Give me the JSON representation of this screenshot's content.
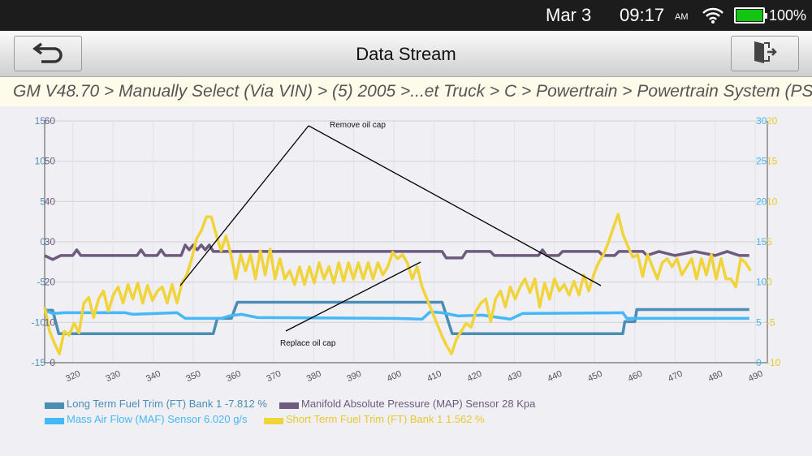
{
  "status_bar": {
    "date": "Mar 3",
    "time": "09:17",
    "ampm": "AM",
    "battery": "100%",
    "wifi_icon": "wifi-icon",
    "battery_icon": "battery-icon"
  },
  "header": {
    "title": "Data Stream",
    "back_icon": "back-arrow-icon",
    "exit_icon": "exit-door-icon"
  },
  "breadcrumb": "GM V48.70 > Manually Select (Via VIN) > (5) 2005 >...et Truck > C > Powertrain > Powertrain System (PS)",
  "chart_data": {
    "type": "line",
    "x_ticks": [
      320,
      330,
      340,
      350,
      360,
      370,
      380,
      390,
      400,
      410,
      420,
      430,
      440,
      450,
      460,
      470,
      480,
      490
    ],
    "xlim": [
      313,
      493
    ],
    "axes": {
      "left_ltft": {
        "ticks": [
          "15",
          "10",
          "5",
          "0",
          "-5",
          "-10",
          "-15"
        ],
        "ylim": [
          -15,
          15
        ],
        "color": "#4f8fb5"
      },
      "left_map": {
        "ticks": [
          "60",
          "50",
          "40",
          "30",
          "20",
          "10",
          "0"
        ],
        "ylim": [
          0,
          60
        ],
        "color": "#6e5a7e"
      },
      "right_maf": {
        "ticks": [
          "30",
          "25",
          "20",
          "15",
          "10",
          "5",
          "0"
        ],
        "ylim": [
          0,
          30
        ],
        "color": "#45b8f5"
      },
      "right_stft": {
        "ticks": [
          "20",
          "15",
          "10",
          "5",
          "0",
          "-5",
          "-10"
        ],
        "ylim": [
          -10,
          20
        ],
        "color": "#f0d43a"
      }
    },
    "series": [
      {
        "name": "Long Term Fuel Trim (FT) Bank 1",
        "value": "-7.812 %",
        "axis": "left_ltft",
        "color": "#4a8db5",
        "points": [
          [
            313,
            -8.5
          ],
          [
            315,
            -8.5
          ],
          [
            316.5,
            -11.4
          ],
          [
            355,
            -11.4
          ],
          [
            356,
            -9.5
          ],
          [
            359.5,
            -9.5
          ],
          [
            361,
            -7.5
          ],
          [
            412,
            -7.5
          ],
          [
            414.5,
            -11.4
          ],
          [
            457,
            -11.4
          ],
          [
            457.5,
            -9.9
          ],
          [
            460,
            -9.9
          ],
          [
            460.5,
            -8.4
          ],
          [
            488.5,
            -8.4
          ]
        ]
      },
      {
        "name": "Manifold Absolute Pressure (MAP) Sensor",
        "value": "28 Kpa",
        "axis": "left_map",
        "color": "#6e5a7e",
        "points": [
          [
            313,
            26.6
          ],
          [
            315,
            25.6
          ],
          [
            317,
            26.6
          ],
          [
            320,
            26.6
          ],
          [
            321,
            28
          ],
          [
            322,
            26.6
          ],
          [
            336,
            26.6
          ],
          [
            337,
            28
          ],
          [
            338,
            26.6
          ],
          [
            341,
            26.6
          ],
          [
            342,
            28
          ],
          [
            343,
            26.6
          ],
          [
            347,
            26.6
          ],
          [
            348,
            29.2
          ],
          [
            349,
            28
          ],
          [
            350,
            29.2
          ],
          [
            351,
            28
          ],
          [
            352,
            29.2
          ],
          [
            353,
            28
          ],
          [
            354,
            29.2
          ],
          [
            355,
            27.6
          ],
          [
            412,
            27.6
          ],
          [
            413,
            26
          ],
          [
            417,
            26
          ],
          [
            418,
            27.6
          ],
          [
            424,
            27.6
          ],
          [
            425,
            26.6
          ],
          [
            436,
            26.6
          ],
          [
            437,
            28
          ],
          [
            438,
            26.6
          ],
          [
            441,
            26.6
          ],
          [
            442,
            27.6
          ],
          [
            451,
            27.6
          ],
          [
            452,
            26.6
          ],
          [
            455,
            26.6
          ],
          [
            456,
            27.6
          ],
          [
            462,
            27.6
          ],
          [
            463,
            26.6
          ],
          [
            466,
            27.6
          ],
          [
            470,
            26.6
          ],
          [
            475,
            27.6
          ],
          [
            480,
            26.6
          ],
          [
            483,
            27.6
          ],
          [
            486,
            26.6
          ],
          [
            488.5,
            26.6
          ]
        ]
      },
      {
        "name": "Mass Air Flow (MAF) Sensor",
        "value": "6.020 g/s",
        "axis": "right_maf",
        "color": "#45b8f5",
        "points": [
          [
            313,
            6.5
          ],
          [
            315,
            6.1
          ],
          [
            318,
            6.2
          ],
          [
            333,
            6.2
          ],
          [
            335,
            6.0
          ],
          [
            346,
            6.2
          ],
          [
            348,
            5.5
          ],
          [
            357,
            5.5
          ],
          [
            359,
            5.8
          ],
          [
            362,
            6.0
          ],
          [
            366,
            5.6
          ],
          [
            400,
            5.5
          ],
          [
            407,
            5.4
          ],
          [
            409,
            6.3
          ],
          [
            412,
            6.2
          ],
          [
            416,
            5.8
          ],
          [
            422,
            5.9
          ],
          [
            429,
            5.4
          ],
          [
            432,
            6.1
          ],
          [
            457,
            6.2
          ],
          [
            458,
            5.5
          ],
          [
            488.5,
            5.5
          ]
        ]
      },
      {
        "name": "Short Term Fuel Trim (FT) Bank 1",
        "value": "1.562 %",
        "axis": "right_stft",
        "color": "#f0d43a",
        "x_range": [
          313,
          488.8
        ],
        "values": [
          -3.1,
          -6.1,
          -7.6,
          -8.9,
          -6.1,
          -6.6,
          -5.1,
          -6.3,
          -2.6,
          -1.9,
          -4.4,
          -2.1,
          -1.1,
          -3.6,
          -1.6,
          -0.6,
          -2.6,
          -0.3,
          -2.1,
          -0.1,
          -2.6,
          -0.4,
          -2.3,
          -1.1,
          -0.6,
          -2.6,
          -0.3,
          -2.6,
          -0.1,
          0.9,
          2.9,
          5.4,
          6.4,
          8.1,
          8.1,
          5.9,
          3.9,
          5.7,
          3.4,
          0.4,
          3.4,
          1.4,
          3.4,
          0.4,
          3.9,
          0.9,
          4.1,
          0.4,
          2.9,
          0.4,
          1.4,
          -0.3,
          1.9,
          -0.3,
          1.9,
          -0.1,
          2.4,
          0.4,
          1.9,
          -0.1,
          2.4,
          0.1,
          2.4,
          0.4,
          2.4,
          0.4,
          2.4,
          0.4,
          2.4,
          0.9,
          1.9,
          3.7,
          2.9,
          3.4,
          2.4,
          0.4,
          1.9,
          -0.6,
          -2.1,
          -3.6,
          -5.1,
          -6.6,
          -7.9,
          -8.9,
          -7.1,
          -6.1,
          -5.1,
          -5.6,
          -3.6,
          -2.6,
          -2.1,
          -4.9,
          -2.1,
          -1.1,
          -3.1,
          -0.6,
          -2.1,
          -0.6,
          0.4,
          -1.3,
          0.4,
          -3.1,
          -0.1,
          -2.1,
          0.4,
          -1.1,
          -0.3,
          -1.6,
          0.1,
          -1.6,
          0.9,
          -1.1,
          0.9,
          2.4,
          3.4,
          4.9,
          6.7,
          8.4,
          5.9,
          4.4,
          3.1,
          3.4,
          0.7,
          3.4,
          1.9,
          0.4,
          2.4,
          2.9,
          1.9,
          2.9,
          0.9,
          1.9,
          2.9,
          0.4,
          2.9,
          0.9,
          3.4,
          0.4,
          2.9,
          0.4,
          0.4,
          -0.6,
          2.9,
          2.4,
          1.4
        ]
      }
    ],
    "annotations": [
      "Remove oil cap",
      "Replace oil cap"
    ]
  }
}
